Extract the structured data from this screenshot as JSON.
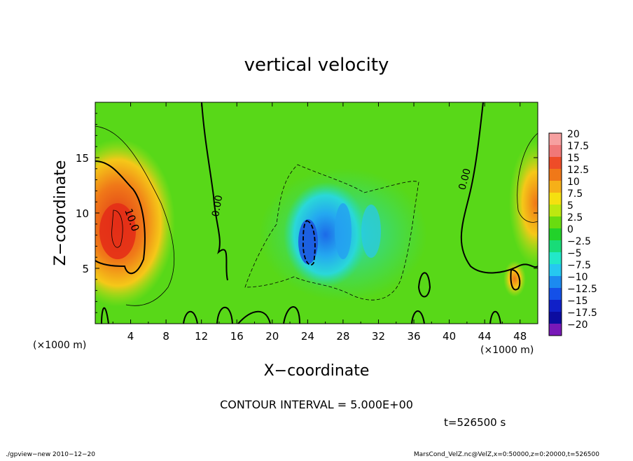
{
  "chart_data": {
    "type": "heatmap",
    "title": "vertical velocity",
    "xlabel": "X−coordinate",
    "ylabel": "Z−coordinate",
    "x_unit": "(×1000 m)",
    "y_unit": "(×1000 m)",
    "xlim": [
      0,
      50
    ],
    "ylim": [
      0,
      20
    ],
    "x_ticks": [
      "4",
      "8",
      "12",
      "16",
      "20",
      "24",
      "28",
      "32",
      "36",
      "40",
      "44",
      "48"
    ],
    "y_ticks": [
      "5",
      "10",
      "15"
    ],
    "contour_interval_text": "CONTOUR INTERVAL = 5.000E+00",
    "contour_labels": [
      "10.0",
      "0.00",
      "0.00"
    ],
    "time_text": "t=526500 s",
    "colorbar": {
      "labels": [
        "20",
        "17.5",
        "15",
        "12.5",
        "10",
        "7.5",
        "5",
        "2.5",
        "0",
        "−2.5",
        "−5",
        "−7.5",
        "−10",
        "−12.5",
        "−15",
        "−17.5",
        "−20"
      ],
      "colors": [
        "#f6a0a0",
        "#f07878",
        "#ee4c28",
        "#f07818",
        "#f6b018",
        "#f5e010",
        "#bde810",
        "#69dc10",
        "#22d22a",
        "#18dc78",
        "#22e8c8",
        "#26c8f0",
        "#1c8af0",
        "#1450e8",
        "#1020c8",
        "#0c0ca0",
        "#7818b8"
      ]
    },
    "footer_left": "./gpview−new   2010−12−20",
    "footer_right": "MarsCond_VelZ.nc@VelZ,x=0:50000,z=0:20000,t=526500"
  }
}
